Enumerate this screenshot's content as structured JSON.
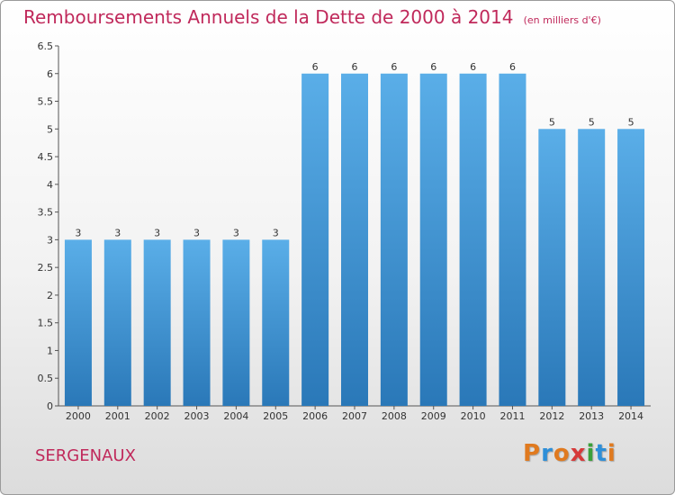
{
  "header": {
    "title": "Remboursements Annuels de la Dette de 2000 à 2014",
    "subtitle": "(en milliers d'€)"
  },
  "footer": {
    "commune": "SERGENAUX",
    "logo_text": "Proxiti",
    "logo_colors": [
      "#e07a1f",
      "#2e8fd8",
      "#e07a1f",
      "#d63a3a",
      "#3aa03a",
      "#2e8fd8",
      "#e07a1f"
    ]
  },
  "colors": {
    "bar_top": "#5aaee8",
    "bar_bottom": "#2a78b8",
    "text": "#333333",
    "accent": "#c0295b"
  },
  "chart_data": {
    "type": "bar",
    "title": "Remboursements Annuels de la Dette de 2000 à 2014",
    "subtitle": "(en milliers d'€)",
    "categories": [
      "2000",
      "2001",
      "2002",
      "2003",
      "2004",
      "2005",
      "2006",
      "2007",
      "2008",
      "2009",
      "2010",
      "2011",
      "2012",
      "2013",
      "2014"
    ],
    "values": [
      3,
      3,
      3,
      3,
      3,
      3,
      6,
      6,
      6,
      6,
      6,
      6,
      5,
      5,
      5
    ],
    "data_labels": [
      "3",
      "3",
      "3",
      "3",
      "3",
      "3",
      "6",
      "6",
      "6",
      "6",
      "6",
      "6",
      "5",
      "5",
      "5"
    ],
    "ylim": [
      0,
      6.5
    ],
    "yticks": [
      "0",
      "0.5",
      "1",
      "1.5",
      "2",
      "2.5",
      "3",
      "3.5",
      "4",
      "4.5",
      "5",
      "5.5",
      "6",
      "6.5"
    ],
    "grid": false,
    "xlabel": "",
    "ylabel": ""
  }
}
